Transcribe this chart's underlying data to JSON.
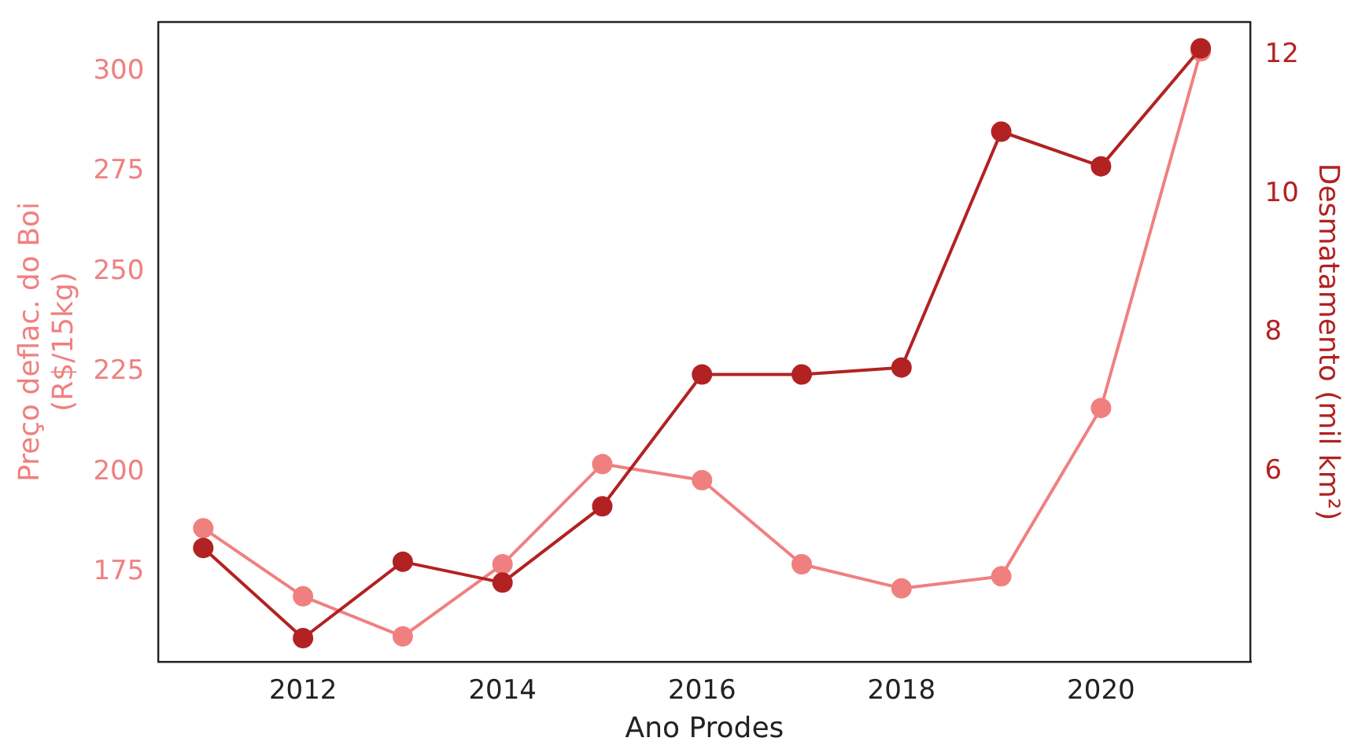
{
  "chart_data": {
    "type": "line",
    "xlabel": "Ano Prodes",
    "ylabel": "Preço deflac. do Boi\n(R$/15kg)",
    "y2label": "Desmatamento (mil km²)",
    "x": [
      2011,
      2012,
      2013,
      2014,
      2015,
      2016,
      2017,
      2018,
      2019,
      2020,
      2021
    ],
    "series": [
      {
        "color": "#f08080",
        "values": [
          186,
          169,
          159,
          177,
          202,
          198,
          177,
          171,
          174,
          216,
          305
        ]
      },
      {
        "color": "#b22222",
        "axis": "y2",
        "values": [
          4.9,
          3.6,
          4.7,
          4.4,
          5.5,
          7.4,
          7.4,
          7.5,
          10.9,
          10.4,
          12.1
        ]
      }
    ],
    "xlim": [
      2010.55,
      2021.5
    ],
    "xticks": [
      2012,
      2014,
      2016,
      2018,
      2020
    ],
    "ylim": [
      152.7,
      312.3
    ],
    "yticks": [
      175,
      200,
      225,
      250,
      275,
      300
    ],
    "y2lim": [
      3.26,
      12.48
    ],
    "y2ticks": [
      6,
      8,
      10,
      12
    ],
    "marker": "circle",
    "grid": false,
    "legend": false
  }
}
